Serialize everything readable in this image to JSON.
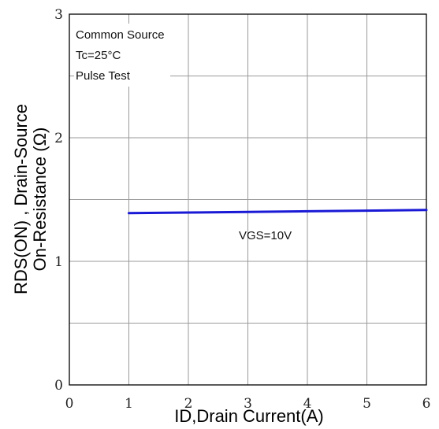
{
  "chart_data": {
    "type": "line",
    "xlabel": "ID,Drain Current(A)",
    "ylabel_line1": "RDS(ON) , Drain-Source",
    "ylabel_line2": "On-Resistance (Ω)",
    "xlim": [
      0,
      6
    ],
    "ylim": [
      0,
      3
    ],
    "x_ticks": [
      "0",
      "1",
      "2",
      "3",
      "4",
      "5",
      "6"
    ],
    "y_ticks": [
      "0",
      "1",
      "2",
      "3"
    ],
    "grid": true,
    "notes": [
      "Common Source",
      "Tc=25°C",
      "Pulse Test"
    ],
    "series": [
      {
        "name": "VGS=10V",
        "color": "#1a1ad6",
        "x": [
          1,
          2,
          3,
          4,
          5,
          6
        ],
        "y": [
          1.39,
          1.395,
          1.4,
          1.405,
          1.41,
          1.415
        ]
      }
    ]
  }
}
